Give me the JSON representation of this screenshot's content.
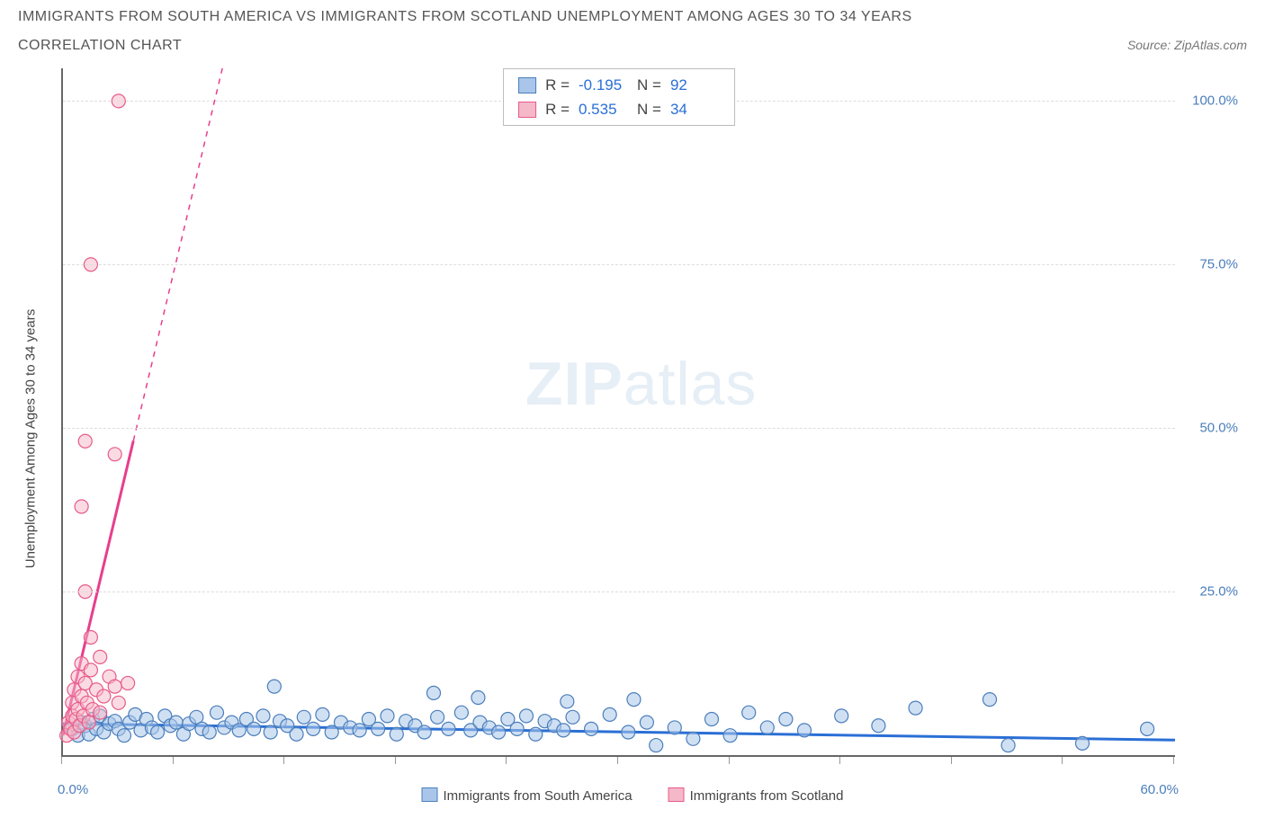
{
  "title_line1": "IMMIGRANTS FROM SOUTH AMERICA VS IMMIGRANTS FROM SCOTLAND UNEMPLOYMENT AMONG AGES 30 TO 34 YEARS",
  "title_line2": "CORRELATION CHART",
  "source_label": "Source: ZipAtlas.com",
  "ylabel": "Unemployment Among Ages 30 to 34 years",
  "watermark_bold": "ZIP",
  "watermark_rest": "atlas",
  "chart": {
    "type": "scatter",
    "background_color": "#ffffff",
    "grid_color": "#dddddd",
    "axis_color": "#666666",
    "xmin": 0,
    "xmax": 60,
    "ymin": 0,
    "ymax": 105,
    "xticks": [
      0,
      6,
      12,
      18,
      24,
      30,
      36,
      42,
      48,
      54,
      60
    ],
    "xtick_labels": {
      "0": "0.0%",
      "60": "60.0%"
    },
    "yticks": [
      25,
      50,
      75,
      100
    ],
    "ytick_labels": {
      "25": "25.0%",
      "50": "50.0%",
      "75": "75.0%",
      "100": "100.0%"
    },
    "series": [
      {
        "key": "south_america",
        "label": "Immigrants from South America",
        "marker_fill": "#a9c6ea",
        "marker_stroke": "#4a7ebb",
        "marker_fill_opacity": 0.55,
        "marker_radius": 7.5,
        "line_color": "#2a6fd6",
        "line_width": 3,
        "trend": {
          "x1": 0,
          "y1": 4.8,
          "x2": 60,
          "y2": 2.3,
          "dash": false
        },
        "R": "-0.195",
        "N": "92",
        "points": [
          [
            0.5,
            4
          ],
          [
            0.8,
            3
          ],
          [
            1.0,
            5
          ],
          [
            1.2,
            4.5
          ],
          [
            1.4,
            3.2
          ],
          [
            1.6,
            5.5
          ],
          [
            1.8,
            4
          ],
          [
            2.0,
            6
          ],
          [
            2.2,
            3.5
          ],
          [
            2.5,
            4.8
          ],
          [
            2.8,
            5.2
          ],
          [
            3.0,
            4
          ],
          [
            3.3,
            3
          ],
          [
            3.6,
            5
          ],
          [
            3.9,
            6.2
          ],
          [
            4.2,
            3.8
          ],
          [
            4.5,
            5.5
          ],
          [
            4.8,
            4.2
          ],
          [
            5.1,
            3.5
          ],
          [
            5.5,
            6
          ],
          [
            5.8,
            4.5
          ],
          [
            6.1,
            5
          ],
          [
            6.5,
            3.2
          ],
          [
            6.8,
            4.8
          ],
          [
            7.2,
            5.8
          ],
          [
            7.5,
            4
          ],
          [
            7.9,
            3.5
          ],
          [
            8.3,
            6.5
          ],
          [
            8.7,
            4.2
          ],
          [
            9.1,
            5
          ],
          [
            9.5,
            3.8
          ],
          [
            9.9,
            5.5
          ],
          [
            10.3,
            4
          ],
          [
            10.8,
            6
          ],
          [
            11.2,
            3.5
          ],
          [
            11.4,
            10.5
          ],
          [
            11.7,
            5.2
          ],
          [
            12.1,
            4.5
          ],
          [
            12.6,
            3.2
          ],
          [
            13.0,
            5.8
          ],
          [
            13.5,
            4
          ],
          [
            14.0,
            6.2
          ],
          [
            14.5,
            3.5
          ],
          [
            15.0,
            5
          ],
          [
            15.5,
            4.2
          ],
          [
            16.0,
            3.8
          ],
          [
            16.5,
            5.5
          ],
          [
            17.0,
            4
          ],
          [
            17.5,
            6
          ],
          [
            18.0,
            3.2
          ],
          [
            18.5,
            5.2
          ],
          [
            19.0,
            4.5
          ],
          [
            19.5,
            3.5
          ],
          [
            20.0,
            9.5
          ],
          [
            20.2,
            5.8
          ],
          [
            20.8,
            4
          ],
          [
            21.5,
            6.5
          ],
          [
            22.0,
            3.8
          ],
          [
            22.4,
            8.8
          ],
          [
            22.5,
            5
          ],
          [
            23.0,
            4.2
          ],
          [
            23.5,
            3.5
          ],
          [
            24.0,
            5.5
          ],
          [
            24.5,
            4
          ],
          [
            25.0,
            6
          ],
          [
            25.5,
            3.2
          ],
          [
            26.0,
            5.2
          ],
          [
            26.5,
            4.5
          ],
          [
            27.0,
            3.8
          ],
          [
            27.2,
            8.2
          ],
          [
            27.5,
            5.8
          ],
          [
            28.5,
            4
          ],
          [
            29.5,
            6.2
          ],
          [
            30.5,
            3.5
          ],
          [
            30.8,
            8.5
          ],
          [
            31.5,
            5
          ],
          [
            32.0,
            1.5
          ],
          [
            33.0,
            4.2
          ],
          [
            34.0,
            2.5
          ],
          [
            35.0,
            5.5
          ],
          [
            36.0,
            3
          ],
          [
            37.0,
            6.5
          ],
          [
            38.0,
            4.2
          ],
          [
            39.0,
            5.5
          ],
          [
            40.0,
            3.8
          ],
          [
            42.0,
            6
          ],
          [
            44.0,
            4.5
          ],
          [
            46.0,
            7.2
          ],
          [
            50.0,
            8.5
          ],
          [
            51.0,
            1.5
          ],
          [
            55.0,
            1.8
          ],
          [
            58.5,
            4
          ]
        ]
      },
      {
        "key": "scotland",
        "label": "Immigrants from Scotland",
        "marker_fill": "#f5b8c8",
        "marker_stroke": "#e85a8a",
        "marker_fill_opacity": 0.5,
        "marker_radius": 7.5,
        "line_color": "#e83e8c",
        "line_width": 3,
        "trend": {
          "x1": 0,
          "y1": 3,
          "x2": 8.6,
          "y2": 105,
          "dash_after_x": 3.8
        },
        "R": "0.535",
        "N": "34",
        "points": [
          [
            0.2,
            3
          ],
          [
            0.3,
            5
          ],
          [
            0.4,
            4
          ],
          [
            0.5,
            6
          ],
          [
            0.5,
            8
          ],
          [
            0.6,
            3.5
          ],
          [
            0.6,
            10
          ],
          [
            0.7,
            5.5
          ],
          [
            0.8,
            7
          ],
          [
            0.8,
            12
          ],
          [
            0.9,
            4.5
          ],
          [
            1.0,
            9
          ],
          [
            1.0,
            14
          ],
          [
            1.1,
            6
          ],
          [
            1.2,
            11
          ],
          [
            1.2,
            25
          ],
          [
            1.3,
            8
          ],
          [
            1.4,
            5
          ],
          [
            1.5,
            13
          ],
          [
            1.5,
            18
          ],
          [
            1.6,
            7
          ],
          [
            1.8,
            10
          ],
          [
            2.0,
            6.5
          ],
          [
            2.0,
            15
          ],
          [
            2.2,
            9
          ],
          [
            2.5,
            12
          ],
          [
            2.8,
            10.5
          ],
          [
            3.0,
            8
          ],
          [
            3.5,
            11
          ],
          [
            1.0,
            38
          ],
          [
            1.2,
            48
          ],
          [
            2.8,
            46
          ],
          [
            1.5,
            75
          ],
          [
            3.0,
            100
          ]
        ]
      }
    ]
  },
  "stats_legend": {
    "rows": [
      {
        "swatch_fill": "#a9c6ea",
        "swatch_stroke": "#4a7ebb",
        "R_label": "R =",
        "R_value": "-0.195",
        "R_neg": true,
        "N_label": "N =",
        "N_value": "92"
      },
      {
        "swatch_fill": "#f5b8c8",
        "swatch_stroke": "#e85a8a",
        "R_label": "R =",
        "R_value": "0.535",
        "R_neg": false,
        "N_label": "N =",
        "N_value": "34"
      }
    ]
  },
  "bottom_legend": [
    {
      "swatch_fill": "#a9c6ea",
      "swatch_stroke": "#4a7ebb",
      "label": "Immigrants from South America"
    },
    {
      "swatch_fill": "#f5b8c8",
      "swatch_stroke": "#e85a8a",
      "label": "Immigrants from Scotland"
    }
  ]
}
